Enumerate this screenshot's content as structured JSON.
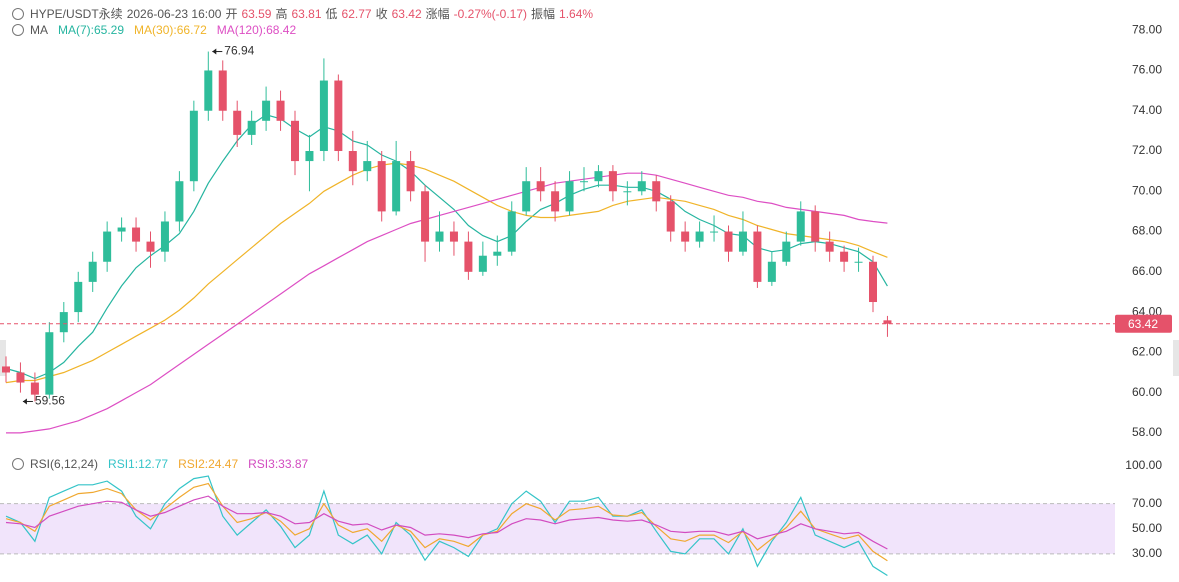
{
  "header": {
    "symbol": "HYPE/USDT永续",
    "time": "2026-06-23 16:00",
    "open_label": "开",
    "high_label": "高",
    "low_label": "低",
    "close_label": "收",
    "change_label": "涨幅",
    "change": "-0.27%(-0.17)",
    "amplitude_label": "振幅",
    "amplitude": "1.64%"
  },
  "chart_data": [
    {
      "type": "candlestick",
      "legend_title": "MA",
      "up_color": "#2ebd9a",
      "down_color": "#e5526a",
      "open": [
        61.3,
        61.0,
        60.5,
        59.9,
        63.0,
        64.0,
        65.5,
        66.5,
        68.0,
        68.2,
        67.5,
        67.0,
        68.5,
        70.5,
        74.0,
        76.0,
        74.0,
        72.8,
        73.5,
        74.5,
        73.5,
        71.5,
        72.0,
        75.5,
        72.0,
        71.0,
        71.5,
        69.0,
        71.5,
        70.0,
        67.5,
        68.0,
        67.5,
        66.0,
        66.8,
        67.0,
        69.0,
        70.5,
        70.0,
        69.0,
        70.5,
        70.5,
        71.0,
        70.0,
        70.0,
        70.5,
        69.5,
        68.0,
        67.5,
        68.0,
        68.0,
        67.0,
        68.0,
        65.5,
        66.5,
        67.5,
        69.0,
        67.5,
        67.0,
        66.5,
        66.5,
        63.59
      ],
      "high": [
        61.8,
        61.5,
        61.0,
        63.5,
        64.5,
        66.0,
        67.0,
        68.5,
        68.7,
        68.7,
        68.0,
        69.0,
        71.0,
        74.5,
        76.94,
        76.5,
        74.5,
        74.0,
        75.2,
        75.0,
        74.0,
        72.8,
        76.6,
        75.8,
        73.0,
        72.5,
        72.0,
        72.5,
        72.0,
        70.3,
        69.0,
        68.5,
        68.0,
        67.5,
        67.8,
        69.5,
        71.2,
        71.2,
        70.5,
        71.0,
        71.2,
        71.3,
        71.3,
        70.5,
        71.0,
        70.8,
        69.8,
        68.5,
        68.5,
        68.8,
        68.3,
        69.0,
        68.3,
        67.0,
        68.0,
        69.5,
        69.3,
        68.0,
        67.3,
        67.2,
        66.8,
        63.81
      ],
      "low": [
        60.5,
        60.0,
        59.56,
        59.7,
        62.5,
        63.5,
        65.0,
        66.0,
        67.5,
        67.0,
        66.2,
        66.5,
        68.0,
        70.0,
        73.5,
        73.5,
        72.2,
        72.3,
        73.0,
        73.0,
        70.8,
        70.0,
        71.5,
        71.5,
        70.3,
        70.5,
        68.5,
        68.8,
        69.5,
        66.5,
        67.0,
        66.8,
        65.6,
        65.8,
        66.3,
        66.8,
        68.8,
        69.5,
        68.5,
        68.8,
        70.0,
        70.2,
        69.5,
        69.3,
        69.8,
        69.0,
        67.5,
        67.0,
        67.2,
        67.5,
        66.5,
        66.8,
        65.2,
        65.3,
        66.3,
        67.3,
        67.0,
        66.5,
        66.0,
        66.0,
        64.0,
        62.77
      ],
      "close": [
        61.0,
        60.5,
        59.9,
        63.0,
        64.0,
        65.5,
        66.5,
        68.0,
        68.2,
        67.5,
        67.0,
        68.5,
        70.5,
        74.0,
        76.0,
        74.0,
        72.8,
        73.5,
        74.5,
        73.5,
        71.5,
        72.0,
        75.5,
        72.0,
        71.0,
        71.5,
        69.0,
        71.5,
        70.0,
        67.5,
        68.0,
        67.5,
        66.0,
        66.8,
        67.0,
        69.0,
        70.5,
        70.0,
        69.0,
        70.5,
        70.5,
        71.0,
        70.0,
        70.0,
        70.5,
        69.5,
        68.0,
        67.5,
        68.0,
        68.0,
        67.0,
        68.0,
        65.5,
        66.5,
        67.5,
        69.0,
        67.5,
        67.0,
        66.5,
        66.5,
        64.5,
        63.42
      ],
      "series": [
        {
          "name": "MA(7):",
          "color": "#26b5a0",
          "values": [
            61.2,
            61.0,
            60.7,
            61.0,
            61.5,
            62.3,
            63.0,
            64.2,
            65.3,
            66.2,
            66.8,
            67.3,
            67.9,
            69.0,
            70.4,
            71.5,
            72.5,
            73.3,
            73.8,
            73.6,
            73.1,
            72.7,
            73.2,
            73.0,
            72.5,
            72.3,
            71.8,
            71.5,
            71.0,
            70.3,
            69.7,
            69.1,
            68.3,
            67.8,
            67.5,
            67.8,
            68.5,
            69.1,
            69.4,
            69.8,
            70.1,
            70.3,
            70.3,
            70.2,
            70.2,
            70.0,
            69.6,
            69.0,
            68.6,
            68.3,
            67.9,
            67.8,
            67.2,
            67.0,
            67.1,
            67.4,
            67.5,
            67.4,
            67.2,
            67.0,
            66.5,
            65.29
          ]
        },
        {
          "name": "MA(30):",
          "color": "#f0b429",
          "values": [
            60.5,
            60.6,
            60.6,
            60.8,
            61.0,
            61.3,
            61.6,
            62.0,
            62.4,
            62.8,
            63.2,
            63.6,
            64.1,
            64.7,
            65.4,
            66.0,
            66.6,
            67.2,
            67.8,
            68.4,
            68.9,
            69.4,
            70.0,
            70.4,
            70.8,
            71.1,
            71.3,
            71.4,
            71.3,
            71.1,
            70.8,
            70.5,
            70.1,
            69.7,
            69.3,
            69.0,
            68.8,
            68.7,
            68.7,
            68.8,
            68.9,
            69.0,
            69.3,
            69.5,
            69.6,
            69.7,
            69.6,
            69.5,
            69.3,
            69.1,
            68.8,
            68.6,
            68.3,
            68.1,
            67.9,
            67.8,
            67.7,
            67.6,
            67.5,
            67.3,
            67.0,
            66.72
          ]
        },
        {
          "name": "MA(120):",
          "color": "#dd4fc4",
          "values": [
            58.0,
            58.0,
            58.1,
            58.2,
            58.4,
            58.6,
            58.9,
            59.2,
            59.6,
            60.0,
            60.4,
            60.9,
            61.4,
            61.9,
            62.4,
            62.9,
            63.4,
            63.9,
            64.4,
            64.9,
            65.4,
            65.9,
            66.3,
            66.7,
            67.1,
            67.5,
            67.8,
            68.1,
            68.4,
            68.6,
            68.8,
            69.0,
            69.2,
            69.4,
            69.6,
            69.8,
            70.0,
            70.2,
            70.4,
            70.5,
            70.6,
            70.7,
            70.8,
            70.9,
            70.9,
            70.8,
            70.6,
            70.4,
            70.2,
            70.0,
            69.8,
            69.7,
            69.5,
            69.4,
            69.2,
            69.1,
            69.0,
            68.9,
            68.8,
            68.6,
            68.5,
            68.42
          ]
        }
      ],
      "ylim": [
        57.2,
        79.5
      ],
      "yticks": [
        {
          "value": 78,
          "label": "78.00"
        },
        {
          "value": 76,
          "label": "76.00"
        },
        {
          "value": 74,
          "label": "74.00"
        },
        {
          "value": 72,
          "label": "72.00"
        },
        {
          "value": 70,
          "label": "70.00"
        },
        {
          "value": 68,
          "label": "68.00"
        },
        {
          "value": 66,
          "label": "66.00"
        },
        {
          "value": 64,
          "label": "64.00"
        },
        {
          "value": 62,
          "label": "62.00"
        },
        {
          "value": 60,
          "label": "60.00"
        },
        {
          "value": 58,
          "label": "58.00"
        }
      ]
    },
    {
      "type": "line",
      "legend_title": "RSI(6,12,24)",
      "band": [
        30,
        70
      ],
      "band_color": "#f1e4fb",
      "series": [
        {
          "name": "RSI1:",
          "color": "#35c4c8",
          "values": [
            60,
            55,
            40,
            75,
            80,
            85,
            85,
            88,
            80,
            60,
            50,
            70,
            82,
            90,
            92,
            60,
            45,
            55,
            65,
            52,
            35,
            45,
            80,
            45,
            38,
            45,
            30,
            55,
            45,
            25,
            40,
            35,
            28,
            45,
            50,
            70,
            80,
            72,
            55,
            72,
            72,
            75,
            60,
            60,
            65,
            48,
            32,
            30,
            42,
            42,
            30,
            50,
            20,
            40,
            55,
            75,
            45,
            40,
            35,
            40,
            20,
            12.77
          ]
        },
        {
          "name": "RSI2:",
          "color": "#f0a830",
          "values": [
            58,
            55,
            48,
            68,
            73,
            78,
            79,
            82,
            78,
            65,
            57,
            66,
            75,
            83,
            86,
            68,
            55,
            58,
            63,
            56,
            45,
            50,
            70,
            53,
            47,
            50,
            40,
            53,
            48,
            35,
            42,
            40,
            36,
            45,
            48,
            62,
            70,
            66,
            57,
            65,
            66,
            68,
            61,
            60,
            63,
            52,
            42,
            40,
            45,
            45,
            39,
            48,
            33,
            42,
            51,
            64,
            50,
            46,
            42,
            45,
            32,
            24.47
          ]
        },
        {
          "name": "RSI3:",
          "color": "#d24cc0",
          "values": [
            55,
            54,
            51,
            60,
            64,
            68,
            70,
            72,
            71,
            65,
            60,
            63,
            68,
            73,
            76,
            68,
            62,
            62,
            63,
            60,
            54,
            55,
            62,
            56,
            53,
            54,
            49,
            53,
            51,
            45,
            46,
            45,
            43,
            46,
            47,
            54,
            58,
            57,
            54,
            57,
            58,
            59,
            57,
            56,
            57,
            53,
            48,
            47,
            48,
            48,
            45,
            48,
            42,
            45,
            48,
            54,
            50,
            48,
            46,
            47,
            40,
            33.87
          ]
        }
      ],
      "ylim": [
        10,
        100
      ],
      "yticks": [
        {
          "value": 100,
          "label": "100.00"
        },
        {
          "value": 70,
          "label": "70.00"
        },
        {
          "value": 50,
          "label": "50.00"
        },
        {
          "value": 30,
          "label": "30.00"
        }
      ]
    }
  ]
}
